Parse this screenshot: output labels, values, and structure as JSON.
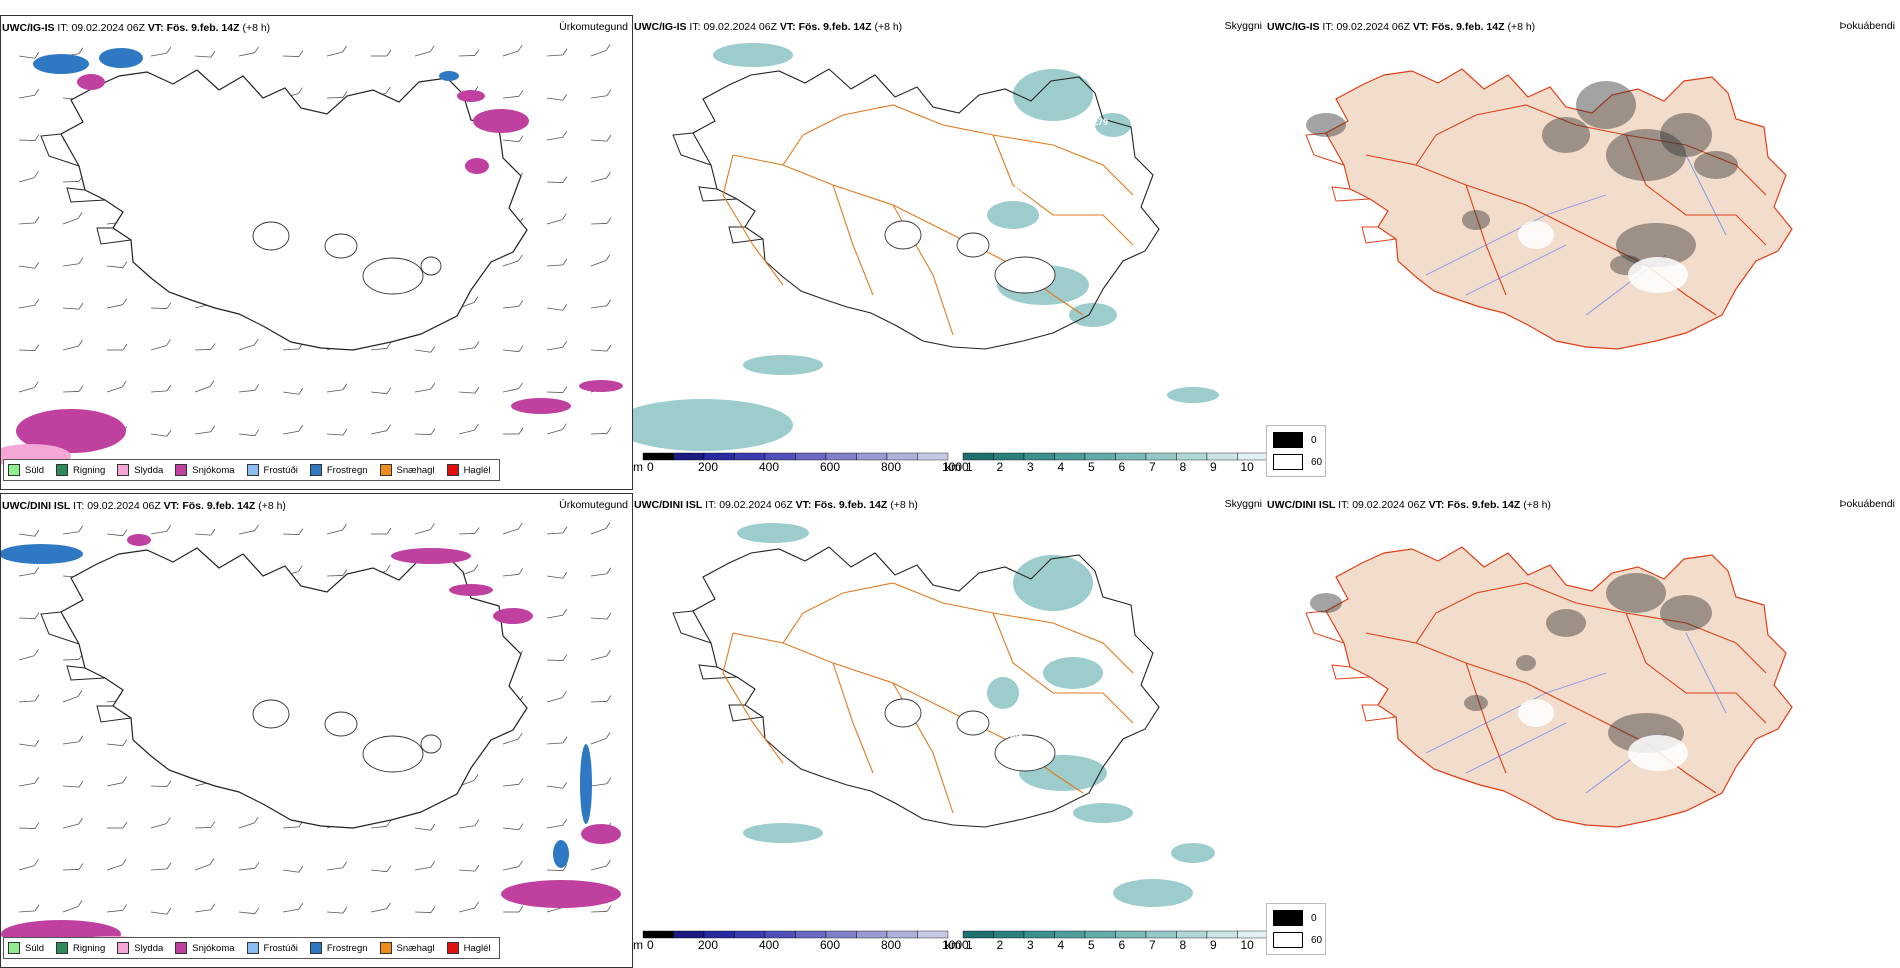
{
  "panels": [
    {
      "id": "p1",
      "model": "UWC/IG-IS",
      "it_label": "IT:",
      "it_value": "09.02.2024 06Z",
      "vt_label": "VT:",
      "vt_value": "Fös. 9.feb. 14Z",
      "lead": "(+8 h)",
      "title": "Úrkomutegund",
      "kind": "precip"
    },
    {
      "id": "p2",
      "model": "UWC/IG-IS",
      "it_label": "IT:",
      "it_value": "09.02.2024 06Z",
      "vt_label": "VT:",
      "vt_value": "Fös. 9.feb. 14Z",
      "lead": "(+8 h)",
      "title": "Skyggni",
      "kind": "vis"
    },
    {
      "id": "p3",
      "model": "UWC/IG-IS",
      "it_label": "IT:",
      "it_value": "09.02.2024 06Z",
      "vt_label": "VT:",
      "vt_value": "Fös. 9.feb. 14Z",
      "lead": "(+8 h)",
      "title": "Þokuábendi",
      "kind": "fog"
    },
    {
      "id": "p4",
      "model": "UWC/DINI ISL",
      "it_label": "IT:",
      "it_value": "09.02.2024 06Z",
      "vt_label": "VT:",
      "vt_value": "Fös. 9.feb. 14Z",
      "lead": "(+8 h)",
      "title": "Úrkomutegund",
      "kind": "precip"
    },
    {
      "id": "p5",
      "model": "UWC/DINI ISL",
      "it_label": "IT:",
      "it_value": "09.02.2024 06Z",
      "vt_label": "VT:",
      "vt_value": "Fös. 9.feb. 14Z",
      "lead": "(+8 h)",
      "title": "Skyggni",
      "kind": "vis"
    },
    {
      "id": "p6",
      "model": "UWC/DINI ISL",
      "it_label": "IT:",
      "it_value": "09.02.2024 06Z",
      "vt_label": "VT:",
      "vt_value": "Fös. 9.feb. 14Z",
      "lead": "(+8 h)",
      "title": "Þokuábendi",
      "kind": "fog"
    }
  ],
  "precip_legend": [
    {
      "label": "Súld",
      "color": "#90ee90"
    },
    {
      "label": "Rigning",
      "color": "#2e8b57"
    },
    {
      "label": "Slydda",
      "color": "#f4a6d7"
    },
    {
      "label": "Snjókoma",
      "color": "#c040a0"
    },
    {
      "label": "Frostúði",
      "color": "#87bdf0"
    },
    {
      "label": "Frostregn",
      "color": "#2f78c4"
    },
    {
      "label": "Snæhagl",
      "color": "#f08c1e"
    },
    {
      "label": "Haglél",
      "color": "#e01010"
    }
  ],
  "vis_scale": {
    "m_unit": "m",
    "m_ticks": [
      "0",
      "200",
      "400",
      "600",
      "800",
      "1000"
    ],
    "m_colors": [
      "#000000",
      "#1a1a80",
      "#2a2aa0",
      "#3c3cb0",
      "#5050b8",
      "#6a6ac0",
      "#8080c8",
      "#9a9ad0",
      "#b0b0d8",
      "#c8c8e4"
    ],
    "km_unit": "km",
    "km_ticks": [
      "1",
      "2",
      "3",
      "4",
      "5",
      "6",
      "7",
      "8",
      "9",
      "10"
    ],
    "km_colors": [
      "#1f6f6f",
      "#2c7f7f",
      "#3d8f8f",
      "#4f9d9d",
      "#64abab",
      "#7cbaba",
      "#96c8c8",
      "#b0d6d6",
      "#cae4e4",
      "#e2f1f1"
    ]
  },
  "fog_legend": [
    {
      "label": "0",
      "color": "#000000"
    },
    {
      "label": "60",
      "color": "#ffffff"
    }
  ],
  "map_labels": {
    "p2": [
      "279",
      "200"
    ],
    "p5": [
      "263",
      "283"
    ],
    "p5b": [
      "983"
    ]
  },
  "colors": {
    "coast": "#222222",
    "roads": "#e07a20",
    "roads_fog": "#e04018",
    "land_fog": "#f2dccc",
    "rivers": "#7f95e8",
    "vis_fill": "#4aa3a3",
    "snow": "#c040a0",
    "frost": "#2f78c4"
  }
}
